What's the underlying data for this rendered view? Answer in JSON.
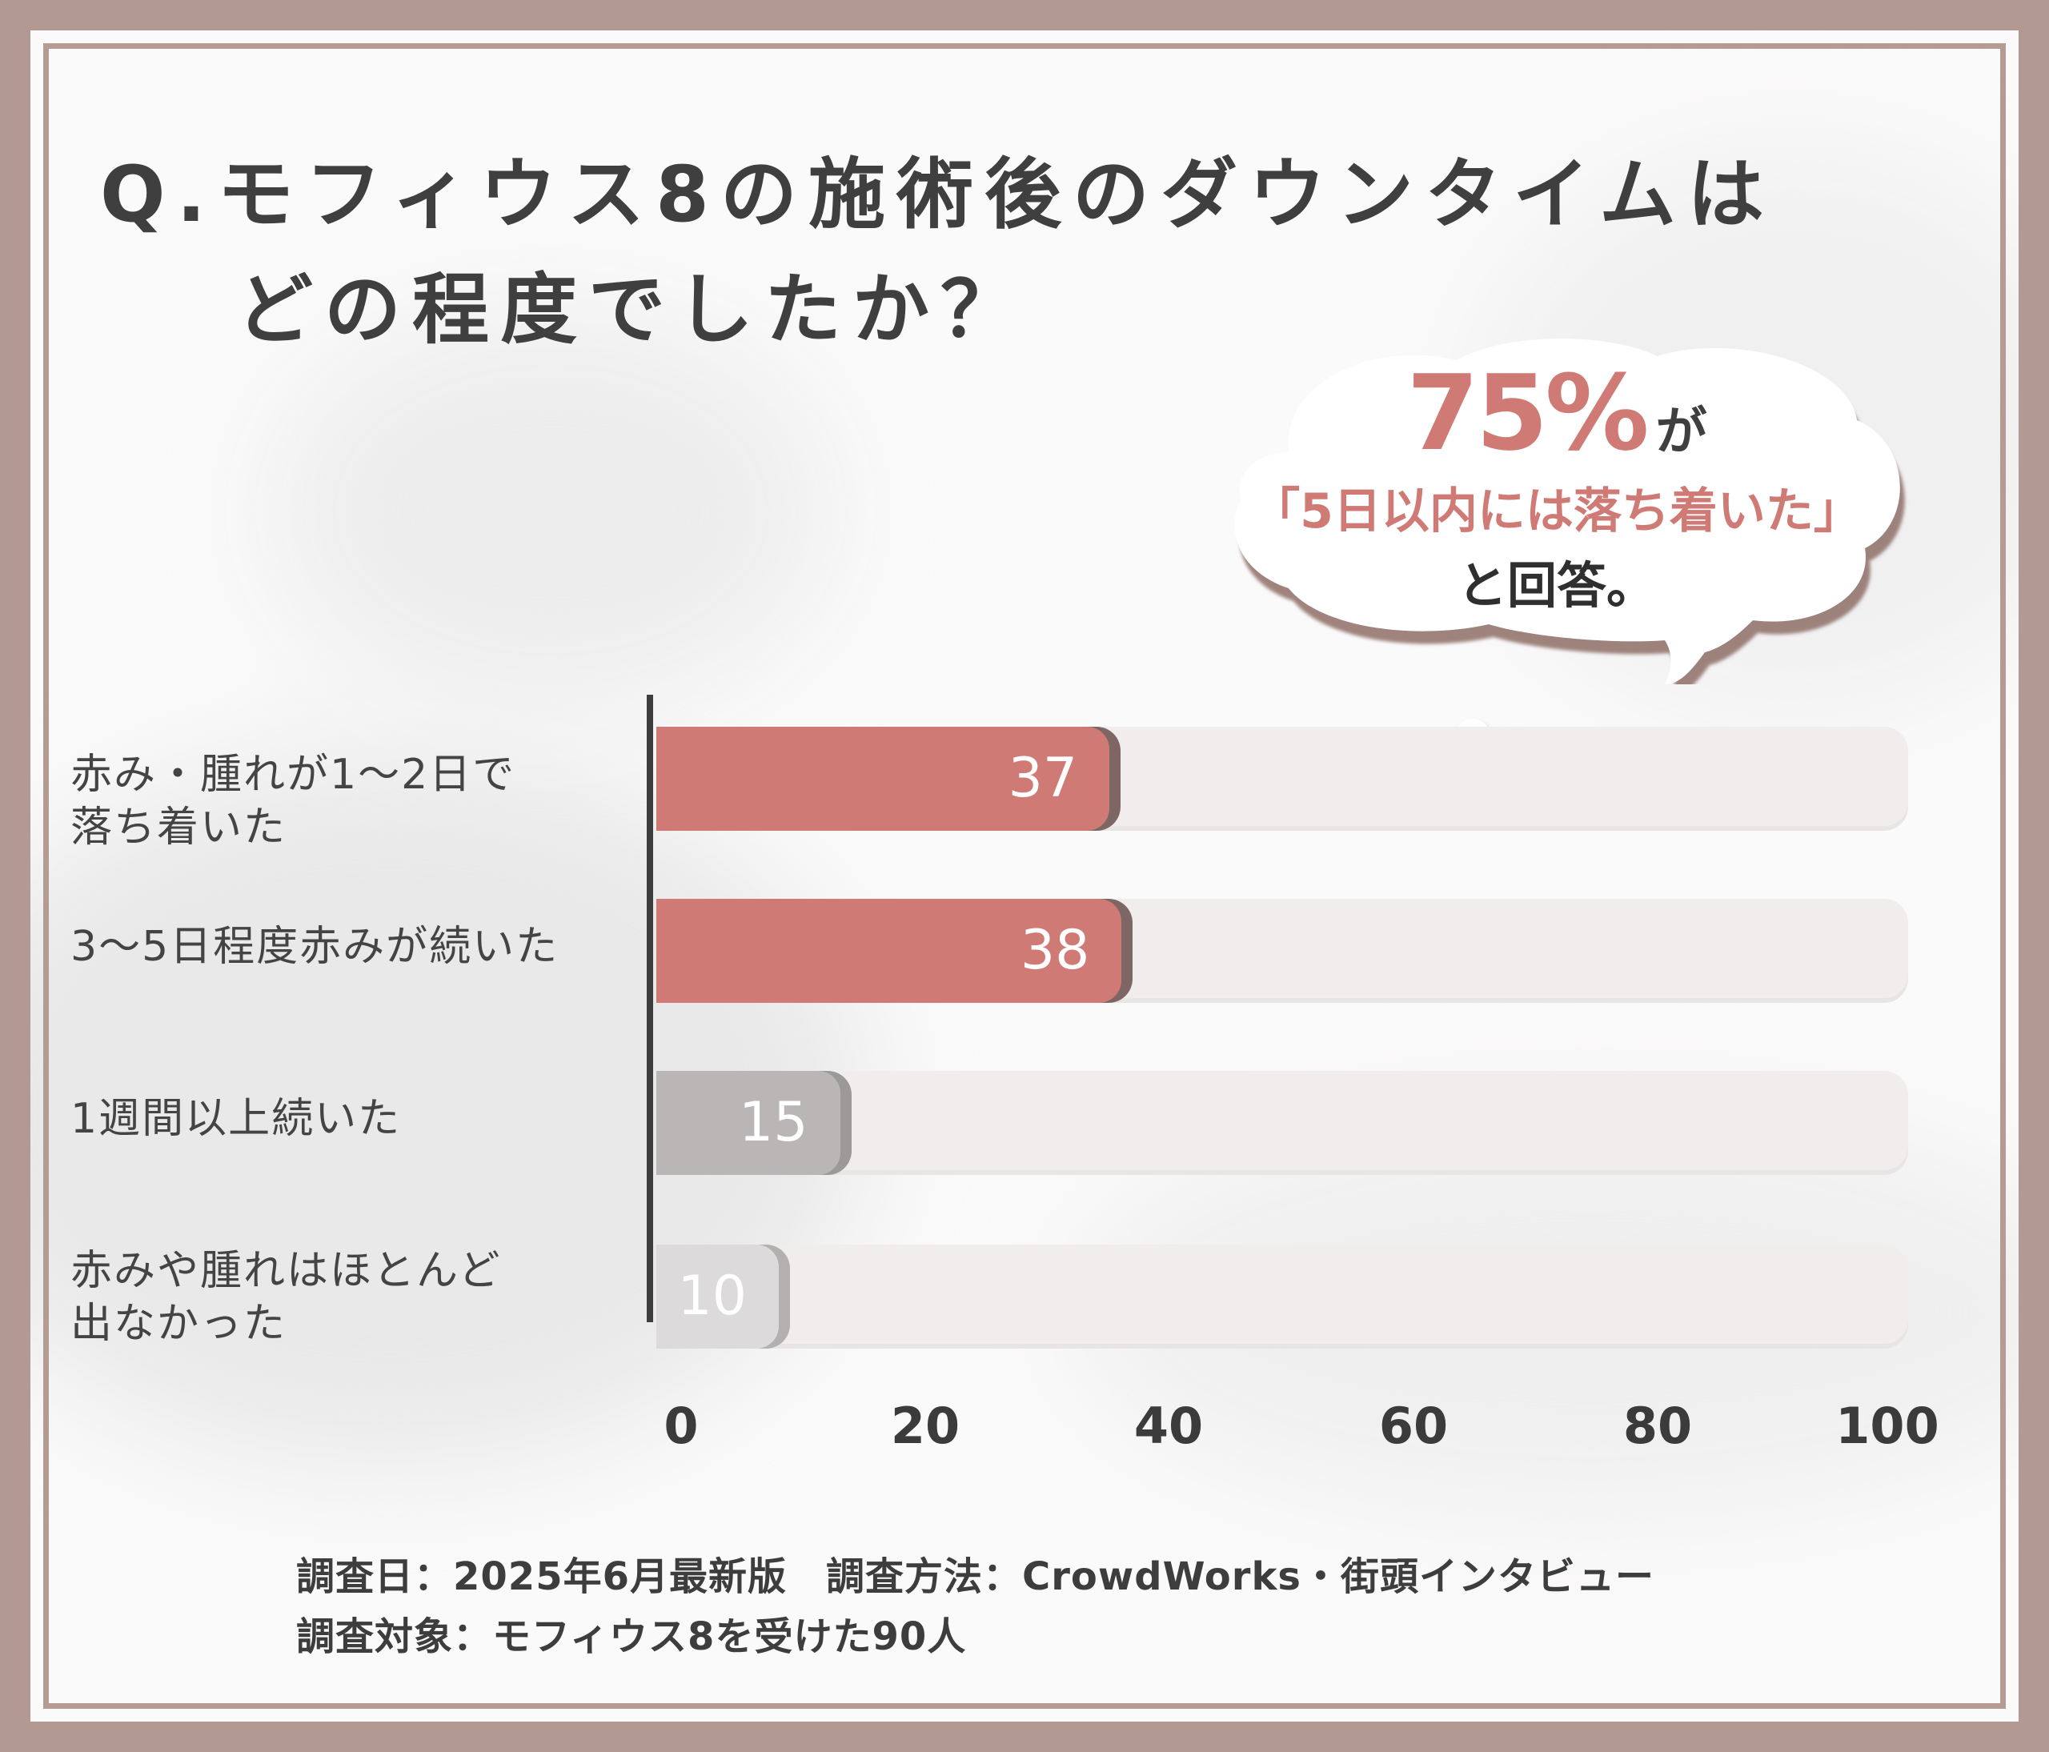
{
  "title_line1": "Q.モフィウス8の施術後のダウンタイムは",
  "title_line2": "どの程度でしたか？",
  "callout": {
    "percent": "75%",
    "suffix": "が",
    "quote": "「5日以内には落ち着いた」",
    "answer": "と回答。"
  },
  "footnote": {
    "line1": "調査日：2025年6月最新版　調査方法：CrowdWorks・街頭インタビュー",
    "line2": "調査対象：モフィウス8を受けた90人"
  },
  "colors": {
    "frame": "#b29a92",
    "accent": "#d07a75",
    "gray": "#b9b6b5",
    "light_gray": "#dcdada"
  },
  "chart_data": {
    "type": "bar",
    "orientation": "horizontal",
    "title": "Q.モフィウス8の施術後のダウンタイムはどの程度でしたか？",
    "categories": [
      "赤み・腫れが1〜2日で\n落ち着いた",
      "3〜5日程度赤みが続いた",
      "1週間以上続いた",
      "赤みや腫れはほとんど\n出なかった"
    ],
    "values": [
      37,
      38,
      15,
      10
    ],
    "value_labels": [
      "37",
      "38",
      "15",
      "10"
    ],
    "bar_colors": [
      "#d07a75",
      "#d07a75",
      "#b9b6b5",
      "#dcdada"
    ],
    "xlim": [
      0,
      100
    ],
    "ticks": [
      "0",
      "20",
      "40",
      "60",
      "80",
      "100"
    ],
    "xlabel": "",
    "ylabel": ""
  }
}
